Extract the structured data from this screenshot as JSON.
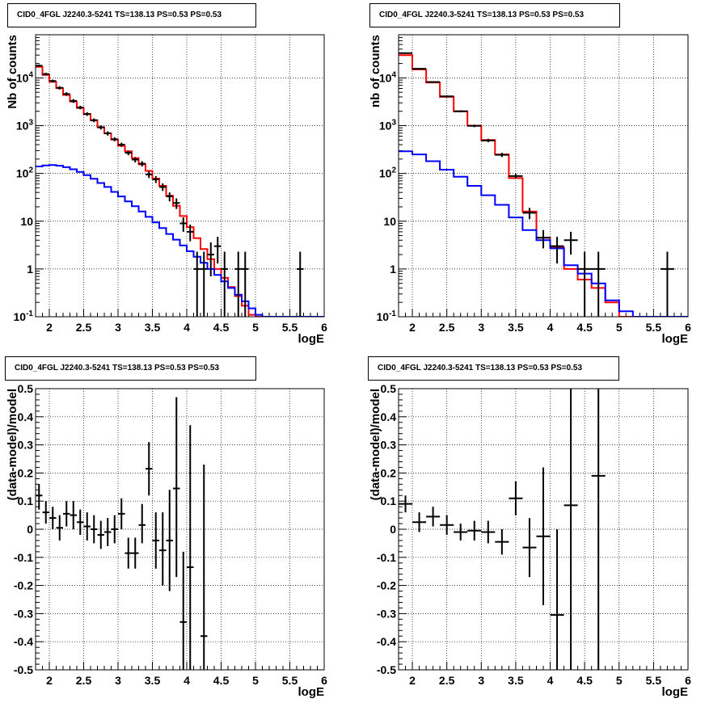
{
  "chart_data": [
    {
      "type": "line",
      "title": "CID0_4FGL J2240.3-5241 TS=138.13 PS=0.53 PS=0.53",
      "xlabel": "logE",
      "ylabel": "Nb of counts",
      "log_y": true,
      "xlim": [
        1.8,
        6.0
      ],
      "ylim": [
        0.1,
        80000
      ],
      "grid": true,
      "x_tick_labels": [
        "2",
        "2.5",
        "3",
        "3.5",
        "4",
        "4.5",
        "5",
        "5.5",
        "6"
      ],
      "y_tick_labels": [
        "10^-1",
        "1",
        "10",
        "10^2",
        "10^3",
        "10^4"
      ],
      "bin_edges": [
        1.8,
        1.9,
        2.0,
        2.1,
        2.2,
        2.3,
        2.4,
        2.5,
        2.6,
        2.7,
        2.8,
        2.9,
        3.0,
        3.1,
        3.2,
        3.3,
        3.4,
        3.5,
        3.6,
        3.7,
        3.8,
        3.9,
        4.0,
        4.1,
        4.2,
        4.3,
        4.4,
        4.5,
        4.6,
        4.7,
        4.8,
        4.9,
        5.0,
        5.1,
        5.2,
        5.3,
        5.4,
        5.5,
        5.6,
        5.7,
        5.8,
        5.9,
        6.0
      ],
      "series": [
        {
          "name": "",
          "color": "#ff0000",
          "style": "step",
          "values": [
            17000,
            11500,
            8300,
            6100,
            4400,
            3200,
            2350,
            1750,
            1300,
            930,
            690,
            510,
            380,
            290,
            210,
            155,
            113,
            78,
            55,
            34,
            21,
            12.8,
            7.5,
            4.4,
            2.6,
            1.6,
            1.0,
            0.65,
            0.42,
            0.27,
            0.17,
            0.11,
            0.1,
            0.1,
            0.1,
            0.1,
            0.1,
            0.1,
            0.1,
            0.1,
            0.1,
            0.1
          ]
        },
        {
          "name": "",
          "color": "#0000ff",
          "style": "step",
          "values": [
            140,
            147,
            150,
            145,
            135,
            122,
            108,
            92,
            77,
            63,
            52,
            41,
            33,
            26,
            20.5,
            16,
            12.3,
            9.4,
            7.2,
            5.4,
            4.1,
            3.1,
            2.35,
            1.8,
            1.35,
            1.0,
            0.75,
            0.55,
            0.4,
            0.29,
            0.21,
            0.15,
            0.11,
            0.1,
            0.1,
            0.1,
            0.1,
            0.1,
            0.1,
            0.1,
            0.1,
            0.1
          ]
        },
        {
          "name": "",
          "color": "#000000",
          "style": "points",
          "points": [
            {
              "x": 1.85,
              "y": 18000,
              "lo": 17000,
              "hi": 19000
            },
            {
              "x": 1.95,
              "y": 12000,
              "lo": 11300,
              "hi": 12800
            },
            {
              "x": 2.05,
              "y": 8600,
              "lo": 8000,
              "hi": 9200
            },
            {
              "x": 2.15,
              "y": 6200,
              "lo": 5700,
              "hi": 6700
            },
            {
              "x": 2.25,
              "y": 4600,
              "lo": 4200,
              "hi": 5000
            },
            {
              "x": 2.35,
              "y": 3300,
              "lo": 3000,
              "hi": 3600
            },
            {
              "x": 2.45,
              "y": 2400,
              "lo": 2200,
              "hi": 2600
            },
            {
              "x": 2.55,
              "y": 1750,
              "lo": 1600,
              "hi": 1900
            },
            {
              "x": 2.65,
              "y": 1300,
              "lo": 1180,
              "hi": 1420
            },
            {
              "x": 2.75,
              "y": 920,
              "lo": 830,
              "hi": 1010
            },
            {
              "x": 2.85,
              "y": 690,
              "lo": 620,
              "hi": 760
            },
            {
              "x": 2.95,
              "y": 520,
              "lo": 470,
              "hi": 570
            },
            {
              "x": 3.05,
              "y": 400,
              "lo": 360,
              "hi": 440
            },
            {
              "x": 3.15,
              "y": 270,
              "lo": 240,
              "hi": 300
            },
            {
              "x": 3.25,
              "y": 195,
              "lo": 170,
              "hi": 220
            },
            {
              "x": 3.35,
              "y": 160,
              "lo": 140,
              "hi": 180
            },
            {
              "x": 3.45,
              "y": 95,
              "lo": 80,
              "hi": 110
            },
            {
              "x": 3.55,
              "y": 75,
              "lo": 63,
              "hi": 88
            },
            {
              "x": 3.65,
              "y": 52,
              "lo": 43,
              "hi": 62
            },
            {
              "x": 3.75,
              "y": 33,
              "lo": 26,
              "hi": 40
            },
            {
              "x": 3.85,
              "y": 24,
              "lo": 18,
              "hi": 30
            },
            {
              "x": 3.95,
              "y": 9,
              "lo": 6,
              "hi": 12
            },
            {
              "x": 4.05,
              "y": 6,
              "lo": 3.8,
              "hi": 8.5
            },
            {
              "x": 4.15,
              "y": 1,
              "lo": 0.1,
              "hi": 2.3
            },
            {
              "x": 4.25,
              "y": 1,
              "lo": 0.1,
              "hi": 2.3
            },
            {
              "x": 4.35,
              "y": 2,
              "lo": 0.7,
              "hi": 3.6
            },
            {
              "x": 4.45,
              "y": 3,
              "lo": 1.3,
              "hi": 4.7
            },
            {
              "x": 4.55,
              "y": 1,
              "lo": 0.1,
              "hi": 2.3
            },
            {
              "x": 4.75,
              "y": 1,
              "lo": 0.1,
              "hi": 2.3
            },
            {
              "x": 4.85,
              "y": 1,
              "lo": 0.1,
              "hi": 2.3
            },
            {
              "x": 5.65,
              "y": 1,
              "lo": 0.1,
              "hi": 2.3
            }
          ]
        }
      ]
    },
    {
      "type": "line",
      "title": "CID0_4FGL J2240.3-5241 TS=138.13 PS=0.53 PS=0.53",
      "xlabel": "logE",
      "ylabel": "nb of counts",
      "log_y": true,
      "xlim": [
        1.8,
        6.0
      ],
      "ylim": [
        0.1,
        80000
      ],
      "grid": true,
      "x_tick_labels": [
        "2",
        "2.5",
        "3",
        "3.5",
        "4",
        "4.5",
        "5",
        "5.5",
        "6"
      ],
      "y_tick_labels": [
        "10^-1",
        "1",
        "10",
        "10^2",
        "10^3",
        "10^4"
      ],
      "bin_edges": [
        1.8,
        2.0,
        2.2,
        2.4,
        2.6,
        2.8,
        3.0,
        3.2,
        3.4,
        3.6,
        3.8,
        4.0,
        4.2,
        4.4,
        4.6,
        4.8,
        5.0,
        5.2,
        5.4,
        5.6,
        5.8,
        6.0
      ],
      "series": [
        {
          "name": "",
          "color": "#ff0000",
          "style": "step",
          "values": [
            30000,
            15000,
            8000,
            4000,
            2000,
            1000,
            500,
            250,
            80,
            16,
            4.5,
            2.8,
            1.0,
            0.6,
            0.4,
            0.2,
            0.1,
            0.1,
            0.1,
            0.1,
            0.1
          ]
        },
        {
          "name": "",
          "color": "#0000ff",
          "style": "step",
          "values": [
            290,
            250,
            180,
            120,
            85,
            55,
            35,
            22,
            12,
            6.5,
            4.0,
            2.7,
            1.2,
            0.8,
            0.5,
            0.22,
            0.13,
            0.1,
            0.1,
            0.1,
            0.1
          ]
        },
        {
          "name": "",
          "color": "#000000",
          "style": "points",
          "points": [
            {
              "x": 1.9,
              "y": 33000,
              "lo": 32000,
              "hi": 34000
            },
            {
              "x": 2.1,
              "y": 15500,
              "lo": 15000,
              "hi": 16000
            },
            {
              "x": 2.3,
              "y": 8200,
              "lo": 7900,
              "hi": 8500
            },
            {
              "x": 2.5,
              "y": 4100,
              "lo": 3900,
              "hi": 4300
            },
            {
              "x": 2.7,
              "y": 2000,
              "lo": 1900,
              "hi": 2100
            },
            {
              "x": 2.9,
              "y": 990,
              "lo": 930,
              "hi": 1050
            },
            {
              "x": 3.1,
              "y": 490,
              "lo": 450,
              "hi": 530
            },
            {
              "x": 3.3,
              "y": 245,
              "lo": 220,
              "hi": 270
            },
            {
              "x": 3.5,
              "y": 88,
              "lo": 78,
              "hi": 98
            },
            {
              "x": 3.7,
              "y": 15,
              "lo": 11,
              "hi": 19
            },
            {
              "x": 3.9,
              "y": 4.5,
              "lo": 2.7,
              "hi": 6.5
            },
            {
              "x": 4.1,
              "y": 3,
              "lo": 1.3,
              "hi": 4.7
            },
            {
              "x": 4.3,
              "y": 4,
              "lo": 2,
              "hi": 6
            },
            {
              "x": 4.5,
              "y": 1,
              "lo": 0.1,
              "hi": 2.3
            },
            {
              "x": 4.7,
              "y": 1,
              "lo": 0.1,
              "hi": 2.3
            },
            {
              "x": 5.7,
              "y": 1,
              "lo": 0.1,
              "hi": 2.3
            }
          ]
        }
      ]
    },
    {
      "type": "scatter",
      "title": "CID0_4FGL J2240.3-5241 TS=138.13 PS=0.53 PS=0.53",
      "xlabel": "logE",
      "ylabel": "(data-model)/model",
      "log_y": false,
      "xlim": [
        1.8,
        6.0
      ],
      "ylim": [
        -0.5,
        0.5
      ],
      "grid": true,
      "x_tick_labels": [
        "2",
        "2.5",
        "3",
        "3.5",
        "4",
        "4.5",
        "5",
        "5.5",
        "6"
      ],
      "y_tick_labels": [
        "-0.5",
        "-0.4",
        "-0.3",
        "-0.2",
        "-0.1",
        "0",
        "0.1",
        "0.2",
        "0.3",
        "0.4",
        "0.5"
      ],
      "x_half_width": 0.05,
      "series": [
        {
          "name": "",
          "color": "#000000",
          "points": [
            {
              "x": 1.85,
              "y": 0.12,
              "lo": 0.07,
              "hi": 0.16
            },
            {
              "x": 1.95,
              "y": 0.06,
              "lo": 0.02,
              "hi": 0.1
            },
            {
              "x": 2.05,
              "y": 0.04,
              "lo": 0.0,
              "hi": 0.08
            },
            {
              "x": 2.15,
              "y": 0.005,
              "lo": -0.04,
              "hi": 0.05
            },
            {
              "x": 2.25,
              "y": 0.055,
              "lo": 0.01,
              "hi": 0.1
            },
            {
              "x": 2.35,
              "y": 0.05,
              "lo": 0.0,
              "hi": 0.1
            },
            {
              "x": 2.45,
              "y": 0.025,
              "lo": -0.02,
              "hi": 0.07
            },
            {
              "x": 2.55,
              "y": 0.01,
              "lo": -0.04,
              "hi": 0.06
            },
            {
              "x": 2.65,
              "y": 0.0,
              "lo": -0.05,
              "hi": 0.05
            },
            {
              "x": 2.75,
              "y": -0.02,
              "lo": -0.07,
              "hi": 0.03
            },
            {
              "x": 2.85,
              "y": -0.01,
              "lo": -0.06,
              "hi": 0.04
            },
            {
              "x": 2.95,
              "y": 0.0,
              "lo": -0.05,
              "hi": 0.05
            },
            {
              "x": 3.05,
              "y": 0.055,
              "lo": 0.0,
              "hi": 0.11
            },
            {
              "x": 3.15,
              "y": -0.085,
              "lo": -0.14,
              "hi": -0.03
            },
            {
              "x": 3.25,
              "y": -0.085,
              "lo": -0.14,
              "hi": -0.03
            },
            {
              "x": 3.35,
              "y": 0.015,
              "lo": -0.05,
              "hi": 0.09
            },
            {
              "x": 3.45,
              "y": 0.215,
              "lo": 0.12,
              "hi": 0.31
            },
            {
              "x": 3.55,
              "y": -0.04,
              "lo": -0.14,
              "hi": 0.06
            },
            {
              "x": 3.65,
              "y": -0.075,
              "lo": -0.2,
              "hi": 0.06
            },
            {
              "x": 3.75,
              "y": -0.04,
              "lo": -0.22,
              "hi": 0.14
            },
            {
              "x": 3.85,
              "y": 0.145,
              "lo": -0.17,
              "hi": 0.47
            },
            {
              "x": 3.95,
              "y": -0.33,
              "lo": -0.5,
              "hi": -0.08
            },
            {
              "x": 4.05,
              "y": -0.135,
              "lo": -0.5,
              "hi": 0.37
            },
            {
              "x": 4.25,
              "y": -0.38,
              "lo": -0.5,
              "hi": 0.23
            }
          ]
        }
      ]
    },
    {
      "type": "scatter",
      "title": "CID0_4FGL J2240.3-5241 TS=138.13 PS=0.53 PS=0.53",
      "xlabel": "logE",
      "ylabel": "(data-model)/model",
      "log_y": false,
      "xlim": [
        1.8,
        6.0
      ],
      "ylim": [
        -0.5,
        0.5
      ],
      "grid": true,
      "x_tick_labels": [
        "2",
        "2.5",
        "3",
        "3.5",
        "4",
        "4.5",
        "5",
        "5.5",
        "6"
      ],
      "y_tick_labels": [
        "-0.5",
        "-0.4",
        "-0.3",
        "-0.2",
        "-0.1",
        "0",
        "0.1",
        "0.2",
        "0.3",
        "0.4",
        "0.5"
      ],
      "x_half_width": 0.1,
      "series": [
        {
          "name": "",
          "color": "#000000",
          "points": [
            {
              "x": 1.9,
              "y": 0.09,
              "lo": 0.06,
              "hi": 0.12
            },
            {
              "x": 2.1,
              "y": 0.025,
              "lo": -0.01,
              "hi": 0.06
            },
            {
              "x": 2.3,
              "y": 0.045,
              "lo": 0.01,
              "hi": 0.08
            },
            {
              "x": 2.5,
              "y": 0.015,
              "lo": -0.02,
              "hi": 0.05
            },
            {
              "x": 2.7,
              "y": -0.01,
              "lo": -0.04,
              "hi": 0.02
            },
            {
              "x": 2.9,
              "y": -0.005,
              "lo": -0.04,
              "hi": 0.03
            },
            {
              "x": 3.1,
              "y": -0.01,
              "lo": -0.05,
              "hi": 0.03
            },
            {
              "x": 3.3,
              "y": -0.045,
              "lo": -0.09,
              "hi": 0.0
            },
            {
              "x": 3.5,
              "y": 0.11,
              "lo": 0.05,
              "hi": 0.17
            },
            {
              "x": 3.7,
              "y": -0.065,
              "lo": -0.17,
              "hi": 0.04
            },
            {
              "x": 3.9,
              "y": -0.025,
              "lo": -0.27,
              "hi": 0.22
            },
            {
              "x": 4.1,
              "y": -0.305,
              "lo": -0.5,
              "hi": 0.0
            },
            {
              "x": 4.3,
              "y": 0.085,
              "lo": -0.5,
              "hi": 0.5
            },
            {
              "x": 4.7,
              "y": 0.19,
              "lo": -0.5,
              "hi": 0.5
            }
          ]
        }
      ]
    }
  ]
}
